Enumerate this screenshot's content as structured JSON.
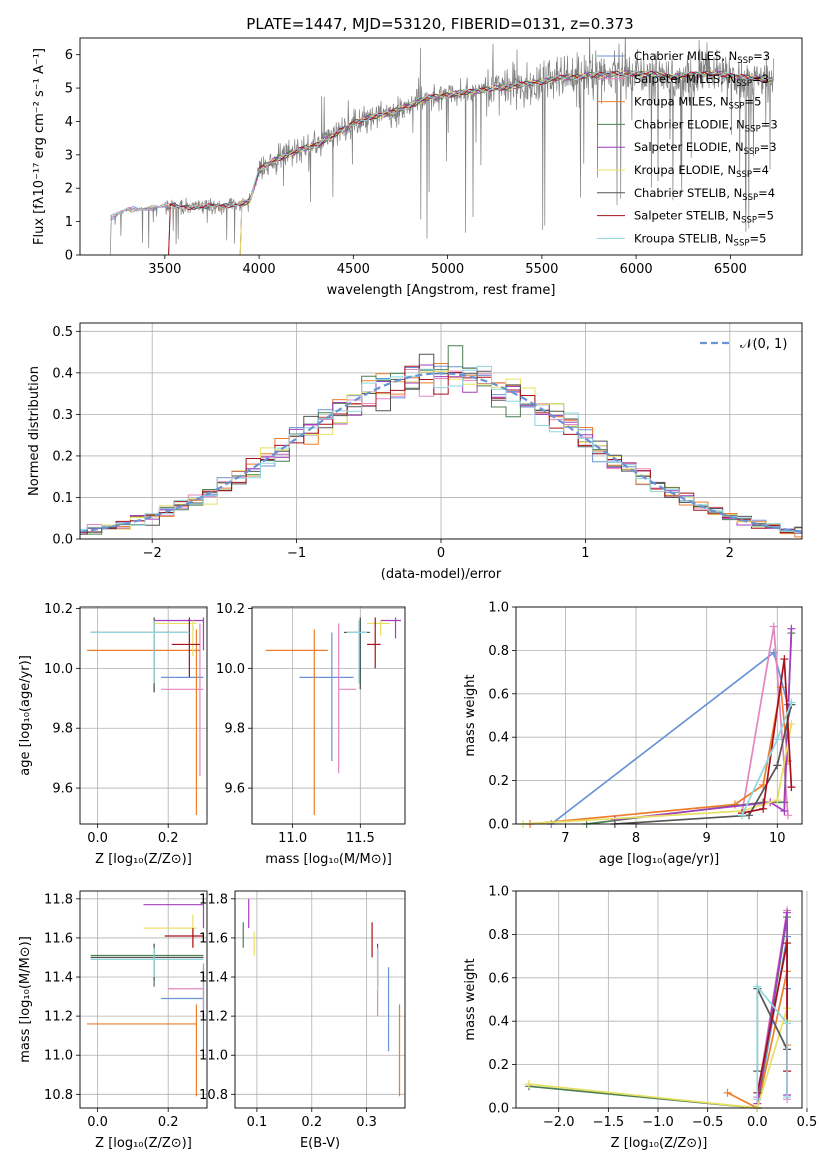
{
  "figure": {
    "title": "PLATE=1447, MJD=53120, FIBERID=0131, z=0.373"
  },
  "colors": {
    "chabrier_miles": "#6a93d6",
    "salpeter_miles": "#e585c0",
    "kroupa_miles": "#ee7d2c",
    "chabrier_elodie": "#4b7f52",
    "salpeter_elodie": "#a43fc0",
    "kroupa_elodie": "#e7e063",
    "chabrier_stelib": "#555555",
    "salpeter_stelib": "#a80f1a",
    "kroupa_stelib": "#8fd6df",
    "data": "#808080",
    "normal": "#6a93d6"
  },
  "legend": [
    {
      "key": "chabrier_miles",
      "label": "Chabrier MILES, N",
      "sub": "SSP",
      "suffix": "=3"
    },
    {
      "key": "salpeter_miles",
      "label": "Salpeter MILES, N",
      "sub": "SSP",
      "suffix": "=3"
    },
    {
      "key": "kroupa_miles",
      "label": "Kroupa MILES, N",
      "sub": "SSP",
      "suffix": "=5"
    },
    {
      "key": "chabrier_elodie",
      "label": "Chabrier ELODIE, N",
      "sub": "SSP",
      "suffix": "=3"
    },
    {
      "key": "salpeter_elodie",
      "label": "Salpeter ELODIE, N",
      "sub": "SSP",
      "suffix": "=3"
    },
    {
      "key": "kroupa_elodie",
      "label": "Kroupa ELODIE, N",
      "sub": "SSP",
      "suffix": "=4"
    },
    {
      "key": "chabrier_stelib",
      "label": "Chabrier STELIB, N",
      "sub": "SSP",
      "suffix": "=4"
    },
    {
      "key": "salpeter_stelib",
      "label": "Salpeter STELIB, N",
      "sub": "SSP",
      "suffix": "=5"
    },
    {
      "key": "kroupa_stelib",
      "label": "Kroupa STELIB, N",
      "sub": "SSP",
      "suffix": "=5"
    }
  ],
  "chart_data": [
    {
      "id": "spectrum",
      "type": "line",
      "xlabel": "wavelength [Angstrom, rest frame]",
      "ylabel": "Flux [fλ10⁻¹⁷ erg cm⁻² s⁻¹ A⁻¹]",
      "xlim": [
        3050,
        6880
      ],
      "ylim": [
        0,
        6.5
      ],
      "xticks": [
        3500,
        4000,
        4500,
        5000,
        5500,
        6000,
        6500
      ],
      "yticks": [
        0,
        1,
        2,
        3,
        4,
        5,
        6
      ],
      "model_anchor_points": {
        "x": [
          3210,
          3300,
          3400,
          3500,
          3650,
          3800,
          3950,
          4000,
          4100,
          4200,
          4300,
          4400,
          4500,
          4600,
          4700,
          4800,
          4900,
          5000,
          5200,
          5400,
          5600,
          5800,
          6000,
          6200,
          6400,
          6600,
          6720
        ],
        "y": [
          1.1,
          1.35,
          1.4,
          1.45,
          1.45,
          1.45,
          1.6,
          2.55,
          2.9,
          3.1,
          3.3,
          3.6,
          3.95,
          4.15,
          4.25,
          4.5,
          4.7,
          4.8,
          4.95,
          5.1,
          5.3,
          5.4,
          5.45,
          5.35,
          5.45,
          5.3,
          5.25
        ]
      }
    },
    {
      "id": "residuals",
      "type": "histogram",
      "xlabel": "(data-model)/error",
      "ylabel": "Normed distribution",
      "xlim": [
        -2.5,
        2.5
      ],
      "ylim": [
        0,
        0.52
      ],
      "xticks": [
        -2,
        -1,
        0,
        1,
        2
      ],
      "yticks": [
        0.0,
        0.1,
        0.2,
        0.3,
        0.4,
        0.5
      ],
      "bin_width": 0.1,
      "series_reference": "N(0,1)",
      "legend_label": "𝒩(0, 1)"
    },
    {
      "id": "age_vs_Z",
      "type": "errorbar",
      "xlabel": "Z [log₁₀(Z/Z⊙)]",
      "ylabel": "age  [log₁₀(age/yr)]",
      "xlim": [
        -0.05,
        0.31
      ],
      "ylim": [
        9.48,
        10.205
      ],
      "xticks": [
        0.0,
        0.2
      ],
      "yticks": [
        9.6,
        9.8,
        10.0,
        10.2
      ],
      "points": [
        {
          "key": "chabrier_miles",
          "x": 0.25,
          "xlo": 0.18,
          "xhi": 0.3,
          "y": 9.97
        },
        {
          "key": "salpeter_miles",
          "x": 0.29,
          "xlo": 0.18,
          "xhi": 0.3,
          "y": 9.93,
          "ylo": 9.64,
          "yhi": 10.15
        },
        {
          "key": "kroupa_miles",
          "x": 0.28,
          "xlo": -0.03,
          "xhi": 0.29,
          "y": 10.06,
          "ylo": 9.51,
          "yhi": 10.13
        },
        {
          "key": "chabrier_elodie",
          "x": 0.16,
          "xlo": -0.02,
          "xhi": 0.26,
          "y": 10.12,
          "ylo": 9.92,
          "yhi": 10.17
        },
        {
          "key": "salpeter_elodie",
          "x": 0.3,
          "xlo": 0.16,
          "xhi": 0.3,
          "y": 10.16,
          "ylo": 10.06,
          "yhi": 10.17
        },
        {
          "key": "kroupa_elodie",
          "x": 0.27,
          "xlo": 0.16,
          "xhi": 0.28,
          "y": 10.15,
          "ylo": 10.04,
          "yhi": 10.16
        },
        {
          "key": "chabrier_stelib",
          "x": 0.16,
          "xlo": -0.02,
          "xhi": 0.26,
          "y": 10.12,
          "ylo": 9.92,
          "yhi": 10.17
        },
        {
          "key": "salpeter_stelib",
          "x": 0.26,
          "xlo": 0.21,
          "xhi": 0.29,
          "y": 10.08,
          "ylo": 9.97,
          "yhi": 10.17
        },
        {
          "key": "kroupa_stelib",
          "x": 0.16,
          "xlo": -0.02,
          "xhi": 0.26,
          "y": 10.12,
          "ylo": 9.95,
          "yhi": 10.16
        }
      ]
    },
    {
      "id": "age_vs_mass",
      "type": "errorbar",
      "xlabel": "mass [log₁₀(M/M⊙)]",
      "ylabel": "",
      "xlim": [
        10.7,
        11.83
      ],
      "ylim": [
        9.48,
        10.205
      ],
      "xticks": [
        11.0,
        11.5
      ],
      "yticks": [
        9.6,
        9.8,
        10.0,
        10.2
      ],
      "points": [
        {
          "key": "chabrier_miles",
          "x": 11.29,
          "xlo": 11.05,
          "xhi": 11.45,
          "y": 9.97,
          "ylo": 9.69,
          "yhi": 10.12
        },
        {
          "key": "salpeter_miles",
          "x": 11.34,
          "xlo": 11.34,
          "xhi": 11.47,
          "y": 9.93,
          "ylo": 9.65,
          "yhi": 10.15
        },
        {
          "key": "kroupa_miles",
          "x": 11.16,
          "xlo": 10.8,
          "xhi": 11.26,
          "y": 10.06,
          "ylo": 9.51,
          "yhi": 10.13
        },
        {
          "key": "chabrier_elodie",
          "x": 11.5,
          "xlo": 11.38,
          "xhi": 11.57,
          "y": 10.12,
          "ylo": 9.93,
          "yhi": 10.17
        },
        {
          "key": "salpeter_elodie",
          "x": 11.76,
          "xlo": 11.65,
          "xhi": 11.8,
          "y": 10.16,
          "ylo": 10.1,
          "yhi": 10.17
        },
        {
          "key": "kroupa_elodie",
          "x": 11.65,
          "xlo": 11.55,
          "xhi": 11.72,
          "y": 10.15,
          "ylo": 10.11,
          "yhi": 10.16
        },
        {
          "key": "chabrier_stelib",
          "x": 11.5,
          "xlo": 11.38,
          "xhi": 11.57,
          "y": 10.12,
          "ylo": 9.93,
          "yhi": 10.17
        },
        {
          "key": "salpeter_stelib",
          "x": 11.61,
          "xlo": 11.55,
          "xhi": 11.65,
          "y": 10.08,
          "ylo": 10.0,
          "yhi": 10.17
        },
        {
          "key": "kroupa_stelib",
          "x": 11.49,
          "xlo": 11.4,
          "xhi": 11.55,
          "y": 10.12,
          "ylo": 9.95,
          "yhi": 10.16
        }
      ]
    },
    {
      "id": "massweight_vs_age",
      "type": "line",
      "xlabel": "age  [log₁₀(age/yr)]",
      "ylabel": "mass weight",
      "xlim": [
        6.3,
        10.35
      ],
      "ylim": [
        0,
        1.0
      ],
      "xticks": [
        7,
        8,
        9,
        10
      ],
      "yticks": [
        0.0,
        0.2,
        0.4,
        0.6,
        0.8,
        1.0
      ],
      "series": [
        {
          "key": "chabrier_miles",
          "x": [
            6.8,
            9.95,
            10.15
          ],
          "y": [
            0.0,
            0.79,
            0.55
          ]
        },
        {
          "key": "salpeter_miles",
          "x": [
            9.5,
            9.95,
            10.15
          ],
          "y": [
            0.05,
            0.91,
            0.04
          ]
        },
        {
          "key": "kroupa_miles",
          "x": [
            6.5,
            9.4,
            9.8,
            10.05,
            10.15
          ],
          "y": [
            0.0,
            0.09,
            0.18,
            0.63,
            0.29
          ]
        },
        {
          "key": "chabrier_elodie",
          "x": [
            7.3,
            9.8,
            10.1,
            10.2
          ],
          "y": [
            0.0,
            0.1,
            0.1,
            0.88
          ]
        },
        {
          "key": "salpeter_elodie",
          "x": [
            7.7,
            9.9,
            10.1,
            10.2
          ],
          "y": [
            0.02,
            0.1,
            0.06,
            0.9
          ]
        },
        {
          "key": "kroupa_elodie",
          "x": [
            6.4,
            9.5,
            10.0,
            10.2
          ],
          "y": [
            0.0,
            0.06,
            0.11,
            0.46
          ]
        },
        {
          "key": "chabrier_stelib",
          "x": [
            7.7,
            9.6,
            10.0,
            10.2
          ],
          "y": [
            0.0,
            0.04,
            0.27,
            0.55
          ]
        },
        {
          "key": "salpeter_stelib",
          "x": [
            9.5,
            9.8,
            10.1,
            10.2
          ],
          "y": [
            0.05,
            0.07,
            0.76,
            0.17
          ]
        },
        {
          "key": "kroupa_stelib",
          "x": [
            9.5,
            10.0,
            10.2
          ],
          "y": [
            0.04,
            0.39,
            0.56
          ]
        }
      ]
    },
    {
      "id": "mass_vs_Z",
      "type": "errorbar",
      "xlabel": "Z [log₁₀(Z/Z⊙)]",
      "ylabel": "mass [log₁₀(M/M⊙)]",
      "xlim": [
        -0.05,
        0.31
      ],
      "ylim": [
        10.73,
        11.84
      ],
      "xticks": [
        0.0,
        0.2
      ],
      "yticks": [
        10.8,
        11.0,
        11.2,
        11.4,
        11.6,
        11.8
      ],
      "points": [
        {
          "key": "chabrier_miles",
          "x": 0.3,
          "xlo": 0.18,
          "xhi": 0.3,
          "y": 11.29,
          "ylo": 11.02,
          "yhi": 11.45
        },
        {
          "key": "salpeter_miles",
          "x": 0.3,
          "xlo": 0.2,
          "xhi": 0.3,
          "y": 11.34,
          "ylo": 11.2,
          "yhi": 11.47
        },
        {
          "key": "kroupa_miles",
          "x": 0.28,
          "xlo": -0.03,
          "xhi": 0.28,
          "y": 11.16,
          "ylo": 10.79,
          "yhi": 11.26
        },
        {
          "key": "chabrier_elodie",
          "x": 0.16,
          "xlo": -0.02,
          "xhi": 0.3,
          "y": 11.51,
          "ylo": 11.35,
          "yhi": 11.57
        },
        {
          "key": "salpeter_elodie",
          "x": 0.3,
          "xlo": 0.13,
          "xhi": 0.3,
          "y": 11.77,
          "ylo": 11.65,
          "yhi": 11.8
        },
        {
          "key": "kroupa_elodie",
          "x": 0.27,
          "xlo": 0.13,
          "xhi": 0.28,
          "y": 11.65,
          "ylo": 11.55,
          "yhi": 11.72
        },
        {
          "key": "chabrier_stelib",
          "x": 0.16,
          "xlo": -0.02,
          "xhi": 0.3,
          "y": 11.5,
          "ylo": 11.38,
          "yhi": 11.57
        },
        {
          "key": "salpeter_stelib",
          "x": 0.27,
          "xlo": 0.19,
          "xhi": 0.3,
          "y": 11.61,
          "ylo": 11.55,
          "yhi": 11.65
        },
        {
          "key": "kroupa_stelib",
          "x": 0.16,
          "xlo": -0.02,
          "xhi": 0.3,
          "y": 11.49,
          "ylo": 11.4,
          "yhi": 11.55
        }
      ]
    },
    {
      "id": "mass_vs_ebv",
      "type": "errorbar",
      "xlabel": "E(B-V)",
      "ylabel": "",
      "xlim": [
        0.06,
        0.37
      ],
      "ylim": [
        10.73,
        11.84
      ],
      "xticks": [
        0.1,
        0.2,
        0.3
      ],
      "yticks": [
        10.8,
        11.0,
        11.2,
        11.4,
        11.6,
        11.8
      ],
      "points": [
        {
          "key": "chabrier_miles",
          "x": 0.34,
          "y": 11.29,
          "ylo": 11.02,
          "yhi": 11.45
        },
        {
          "key": "salpeter_miles",
          "x": 0.32,
          "y": 11.34,
          "ylo": 11.2,
          "yhi": 11.55
        },
        {
          "key": "kroupa_miles",
          "x": 0.36,
          "y": 11.16,
          "ylo": 10.79,
          "yhi": 11.26
        },
        {
          "key": "chabrier_elodie",
          "x": 0.075,
          "y": 11.62,
          "ylo": 11.55,
          "yhi": 11.68
        },
        {
          "key": "salpeter_elodie",
          "x": 0.085,
          "y": 11.72,
          "ylo": 11.65,
          "yhi": 11.8
        },
        {
          "key": "kroupa_elodie",
          "x": 0.095,
          "y": 11.57,
          "ylo": 11.51,
          "yhi": 11.63
        },
        {
          "key": "chabrier_stelib",
          "x": 0.32,
          "y": 11.44,
          "ylo": 11.35,
          "yhi": 11.57
        },
        {
          "key": "salpeter_stelib",
          "x": 0.31,
          "y": 11.61,
          "ylo": 11.5,
          "yhi": 11.68
        },
        {
          "key": "kroupa_stelib",
          "x": 0.32,
          "y": 11.4,
          "ylo": 11.33,
          "yhi": 11.55
        }
      ]
    },
    {
      "id": "massweight_vs_Z",
      "type": "line",
      "xlabel": "Z [log₁₀(Z/Z⊙)]",
      "ylabel": "mass weight",
      "xlim": [
        -2.43,
        0.45
      ],
      "ylim": [
        0,
        1.0
      ],
      "xticks": [
        -2.0,
        -1.5,
        -1.0,
        -0.5,
        0.0,
        0.5
      ],
      "yticks": [
        0.0,
        0.2,
        0.4,
        0.6,
        0.8,
        1.0
      ],
      "series": [
        {
          "key": "chabrier_miles",
          "x": [
            0.0,
            0.3,
            0.3
          ],
          "y": [
            0.0,
            0.79,
            0.55
          ]
        },
        {
          "key": "salpeter_miles",
          "x": [
            0.0,
            0.3,
            0.3
          ],
          "y": [
            0.05,
            0.91,
            0.04
          ]
        },
        {
          "key": "kroupa_miles",
          "x": [
            -0.3,
            0.0,
            0.3,
            0.3
          ],
          "y": [
            0.07,
            0.0,
            0.63,
            0.29
          ]
        },
        {
          "key": "chabrier_elodie",
          "x": [
            -2.3,
            0.0,
            0.3,
            0.3
          ],
          "y": [
            0.1,
            0.0,
            0.88,
            0.4
          ]
        },
        {
          "key": "salpeter_elodie",
          "x": [
            0.0,
            0.3,
            0.3
          ],
          "y": [
            0.02,
            0.9,
            0.06
          ]
        },
        {
          "key": "kroupa_elodie",
          "x": [
            -2.3,
            0.0,
            0.3,
            0.3
          ],
          "y": [
            0.11,
            0.0,
            0.46,
            0.4
          ]
        },
        {
          "key": "chabrier_stelib",
          "x": [
            0.0,
            0.0,
            0.3
          ],
          "y": [
            0.17,
            0.55,
            0.27
          ]
        },
        {
          "key": "salpeter_stelib",
          "x": [
            0.0,
            0.3,
            0.3
          ],
          "y": [
            0.07,
            0.76,
            0.17
          ]
        },
        {
          "key": "kroupa_stelib",
          "x": [
            0.0,
            0.0,
            0.3,
            0.3
          ],
          "y": [
            0.04,
            0.56,
            0.39,
            0.05
          ]
        }
      ]
    }
  ]
}
